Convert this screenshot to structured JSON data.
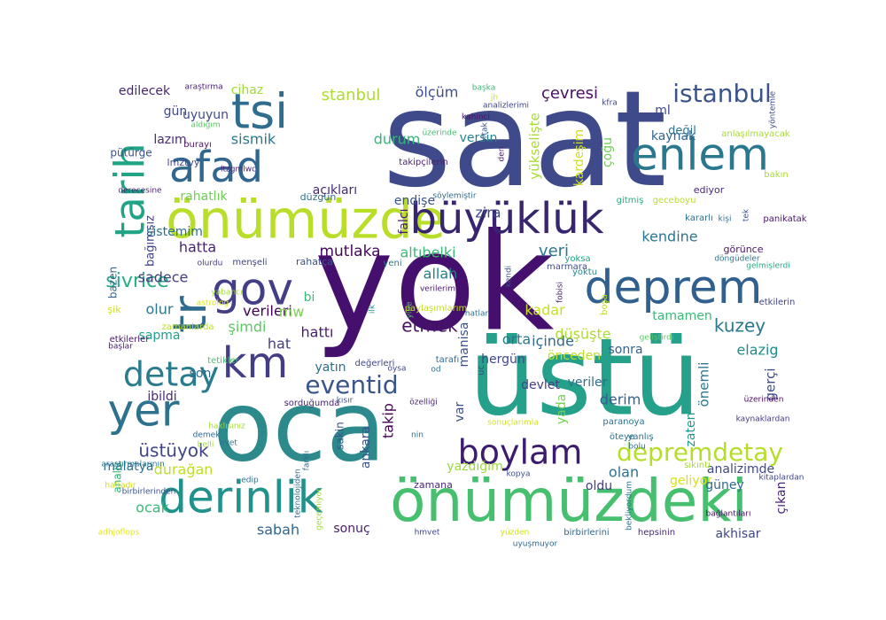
{
  "palette": [
    "#440154",
    "#482777",
    "#3e4989",
    "#31688e",
    "#26828e",
    "#1f9e89",
    "#35b779",
    "#6ece58",
    "#b5de2b",
    "#fde725"
  ],
  "words": [
    {
      "text": "saat",
      "color": "#3e4a89"
    },
    {
      "text": "yok",
      "color": "#45106d"
    },
    {
      "text": "oca",
      "color": "#2d8a8c"
    },
    {
      "text": "üstü",
      "color": "#25a08a"
    },
    {
      "text": "önümüzdeki",
      "color": "#46c06f"
    },
    {
      "text": "önümüzde",
      "color": "#b8de29"
    },
    {
      "text": "büyüklük",
      "color": "#38256f"
    },
    {
      "text": "deprem",
      "color": "#30608d"
    },
    {
      "text": "enlem",
      "color": "#2a788e"
    },
    {
      "text": "tsi",
      "color": "#2f6d8e"
    },
    {
      "text": "afad",
      "color": "#31668e"
    },
    {
      "text": "tr",
      "color": "#2f6b8e"
    },
    {
      "text": "tarih",
      "color": "#20a486"
    },
    {
      "text": "gov",
      "color": "#433e85"
    },
    {
      "text": "km",
      "color": "#433d84"
    },
    {
      "text": "yer",
      "color": "#2c728e"
    },
    {
      "text": "derinlik",
      "color": "#21918c"
    },
    {
      "text": "detay",
      "color": "#297b8e"
    },
    {
      "text": "boylam",
      "color": "#3b1c6e"
    },
    {
      "text": "depremdetay",
      "color": "#b5de2b"
    },
    {
      "text": "eventid",
      "color": "#3a548c"
    },
    {
      "text": "istanbul",
      "color": "#3a538b"
    },
    {
      "text": "stanbul",
      "color": "#addc30"
    },
    {
      "text": "ölçüm",
      "color": "#3d4e8a"
    },
    {
      "text": "çevresi",
      "color": "#471063"
    },
    {
      "text": "edilecek",
      "color": "#482576"
    },
    {
      "text": "araştırma",
      "color": "#482173"
    },
    {
      "text": "cihaz",
      "color": "#a2da37"
    },
    {
      "text": "gün",
      "color": "#3f4889"
    },
    {
      "text": "uyuyun",
      "color": "#3e4c8a"
    },
    {
      "text": "lazım",
      "color": "#482979"
    },
    {
      "text": "sismik",
      "color": "#2a788e"
    },
    {
      "text": "durum",
      "color": "#35b779"
    },
    {
      "text": "versin",
      "color": "#25838e"
    },
    {
      "text": "yükselişte",
      "color": "#a8db34"
    },
    {
      "text": "kardeşim",
      "color": "#d0e11c"
    },
    {
      "text": "çoğu",
      "color": "#6ece58"
    },
    {
      "text": "ml",
      "color": "#3f4788"
    },
    {
      "text": "kaynak",
      "color": "#31668e"
    },
    {
      "text": "değil",
      "color": "#2c738e"
    },
    {
      "text": "rahatlık",
      "color": "#6ece58"
    },
    {
      "text": "açıkları",
      "color": "#482878"
    },
    {
      "text": "endişe",
      "color": "#3b528b"
    },
    {
      "text": "zira",
      "color": "#3e4989"
    },
    {
      "text": "kendine",
      "color": "#2b758e"
    },
    {
      "text": "veri",
      "color": "#2a788e"
    },
    {
      "text": "hatta",
      "color": "#482576"
    },
    {
      "text": "mutlaka",
      "color": "#46085c"
    },
    {
      "text": "altıbelki",
      "color": "#3aba76"
    },
    {
      "text": "allah",
      "color": "#277f8e"
    },
    {
      "text": "sivrice",
      "color": "#26ad81"
    },
    {
      "text": "verileri",
      "color": "#440154"
    },
    {
      "text": "sadece",
      "color": "#424186"
    },
    {
      "text": "olur",
      "color": "#2a778e"
    },
    {
      "text": "bi",
      "color": "#38b977"
    },
    {
      "text": "mw",
      "color": "#7ad151"
    },
    {
      "text": "hattı",
      "color": "#481d6f"
    },
    {
      "text": "şimdi",
      "color": "#5ec962"
    },
    {
      "text": "hat",
      "color": "#423f85"
    },
    {
      "text": "etmek",
      "color": "#471365"
    },
    {
      "text": "manisa",
      "color": "#3b528b"
    },
    {
      "text": "orta",
      "color": "#2a788e"
    },
    {
      "text": "kadar",
      "color": "#c8e020"
    },
    {
      "text": "içinde",
      "color": "#306a8e"
    },
    {
      "text": "düşüşte",
      "color": "#addc30"
    },
    {
      "text": "kuzey",
      "color": "#2a788e"
    },
    {
      "text": "tamamen",
      "color": "#3aba76"
    },
    {
      "text": "sonra",
      "color": "#32648e"
    },
    {
      "text": "elazig",
      "color": "#228c8d"
    },
    {
      "text": "sapma",
      "color": "#1fa088"
    },
    {
      "text": "yatın",
      "color": "#2e6e8e"
    },
    {
      "text": "var",
      "color": "#3b528b"
    },
    {
      "text": "hergün",
      "color": "#3f4788"
    },
    {
      "text": "önceden",
      "color": "#bddf26"
    },
    {
      "text": "ibildi",
      "color": "#482979"
    },
    {
      "text": "son",
      "color": "#31688e"
    },
    {
      "text": "devlet",
      "color": "#433e85"
    },
    {
      "text": "veriler",
      "color": "#2e6e8e"
    },
    {
      "text": "önemli",
      "color": "#2a778e"
    },
    {
      "text": "derim",
      "color": "#35608d"
    },
    {
      "text": "gerçi",
      "color": "#3e4c8a"
    },
    {
      "text": "zaten",
      "color": "#1f9a8a"
    },
    {
      "text": "yada",
      "color": "#75d054"
    },
    {
      "text": "üstüyok",
      "color": "#404688"
    },
    {
      "text": "durağan",
      "color": "#bddf26"
    },
    {
      "text": "malatya",
      "color": "#2c728e"
    },
    {
      "text": "takip",
      "color": "#440154"
    },
    {
      "text": "ankara",
      "color": "#3a548c"
    },
    {
      "text": "sakin",
      "color": "#3b528b"
    },
    {
      "text": "yazdığım",
      "color": "#9bd93c"
    },
    {
      "text": "olan",
      "color": "#2e6f8e"
    },
    {
      "text": "analizimde",
      "color": "#3f4889"
    },
    {
      "text": "geliyor",
      "color": "#d8e219"
    },
    {
      "text": "güney",
      "color": "#31678e"
    },
    {
      "text": "oldu",
      "color": "#433d84"
    },
    {
      "text": "çıkan",
      "color": "#482576"
    },
    {
      "text": "ocak",
      "color": "#3aba76"
    },
    {
      "text": "sabah",
      "color": "#32658e"
    },
    {
      "text": "sonuç",
      "color": "#481b6d"
    },
    {
      "text": "akhisar",
      "color": "#3f4788"
    },
    {
      "text": "analiz",
      "color": "#35b779"
    },
    {
      "text": "bağımsız",
      "color": "#404387"
    },
    {
      "text": "sistemim",
      "color": "#2e6d8e"
    },
    {
      "text": "bazen",
      "color": "#34618d"
    },
    {
      "text": "pütürge",
      "color": "#3b528b"
    },
    {
      "text": "burayı",
      "color": "#481467"
    },
    {
      "text": "aldığım",
      "color": "#5ec962"
    },
    {
      "text": "lmztvy",
      "color": "#3f4788"
    },
    {
      "text": "ltzgmlwc",
      "color": "#482173"
    },
    {
      "text": "derecesine",
      "color": "#481f70"
    },
    {
      "text": "düzgün",
      "color": "#2c728e"
    },
    {
      "text": "şik",
      "color": "#d2e21b"
    },
    {
      "text": "yabancı",
      "color": "#a5db36"
    },
    {
      "text": "astrolog",
      "color": "#d8e219"
    },
    {
      "text": "olurdu",
      "color": "#433d84"
    },
    {
      "text": "menşeli",
      "color": "#404588"
    },
    {
      "text": "rahatça",
      "color": "#3b528b"
    },
    {
      "text": "yeni",
      "color": "#2a788e"
    },
    {
      "text": "zamanlarda",
      "color": "#b5de2b"
    },
    {
      "text": "etkilerler",
      "color": "#481769"
    },
    {
      "text": "başlar",
      "color": "#481668"
    },
    {
      "text": "tetikler",
      "color": "#46c06f"
    },
    {
      "text": "değerleri",
      "color": "#3e4989"
    },
    {
      "text": "tarafı",
      "color": "#31688e"
    },
    {
      "text": "od",
      "color": "#2c728e"
    },
    {
      "text": "uc",
      "color": "#404688"
    },
    {
      "text": "oysa",
      "color": "#3e4a89"
    },
    {
      "text": "ilk",
      "color": "#1f958b"
    },
    {
      "text": "yine",
      "color": "#4ac16d"
    },
    {
      "text": "hatlar",
      "color": "#2d708e"
    },
    {
      "text": "paylaşımlarım",
      "color": "#c2df23"
    },
    {
      "text": "verilerim",
      "color": "#481a6c"
    },
    {
      "text": "yoksa",
      "color": "#1fa287"
    },
    {
      "text": "yoktu",
      "color": "#23898e"
    },
    {
      "text": "marmara",
      "color": "#3d4d8a"
    },
    {
      "text": "fobisi",
      "color": "#482475"
    },
    {
      "text": "boşa",
      "color": "#bddf26"
    },
    {
      "text": "döngüdeler",
      "color": "#2a768e"
    },
    {
      "text": "gelmişlerdi",
      "color": "#27ad81"
    },
    {
      "text": "görünce",
      "color": "#481567"
    },
    {
      "text": "kararlı",
      "color": "#2e6e8e"
    },
    {
      "text": "kişi",
      "color": "#2d718e"
    },
    {
      "text": "tek",
      "color": "#3a548c"
    },
    {
      "text": "panikatak",
      "color": "#481668"
    },
    {
      "text": "başka",
      "color": "#3ab977"
    },
    {
      "text": "jh",
      "color": "#d0e11c"
    },
    {
      "text": "analizlerimi",
      "color": "#404588"
    },
    {
      "text": "kfra",
      "color": "#3f4788"
    },
    {
      "text": "kahinci",
      "color": "#471164"
    },
    {
      "text": "üzerinde",
      "color": "#43bf71"
    },
    {
      "text": "ortak",
      "color": "#3b528b"
    },
    {
      "text": "den",
      "color": "#481b6d"
    },
    {
      "text": "takipçilerin",
      "color": "#481f70"
    },
    {
      "text": "söylemiştir",
      "color": "#2f6c8e"
    },
    {
      "text": "gitmiş",
      "color": "#26ad81"
    },
    {
      "text": "geceboyu",
      "color": "#b5de2b"
    },
    {
      "text": "ediyor",
      "color": "#482979"
    },
    {
      "text": "bakın",
      "color": "#aadc32"
    },
    {
      "text": "anlaşılmayacak",
      "color": "#a8db34"
    },
    {
      "text": "yöntemle",
      "color": "#3f4788"
    },
    {
      "text": "kendi",
      "color": "#3b528b"
    },
    {
      "text": "etkilerin",
      "color": "#404688"
    },
    {
      "text": "geliştirdi",
      "color": "#5ec962"
    },
    {
      "text": "üzerinden",
      "color": "#46085c"
    },
    {
      "text": "kaynaklardan",
      "color": "#443983"
    },
    {
      "text": "özelliği",
      "color": "#482677"
    },
    {
      "text": "kısır",
      "color": "#3b528b"
    },
    {
      "text": "sorduğumda",
      "color": "#482475"
    },
    {
      "text": "haklısınız",
      "color": "#a2da37"
    },
    {
      "text": "demek",
      "color": "#31688e"
    },
    {
      "text": "belli",
      "color": "#a2da37"
    },
    {
      "text": "evet",
      "color": "#2b758e"
    },
    {
      "text": "farklı",
      "color": "#2f6c8e"
    },
    {
      "text": "nin",
      "color": "#2e6e8e"
    },
    {
      "text": "sonuçlarımla",
      "color": "#d2e21b"
    },
    {
      "text": "paranoya",
      "color": "#2c728e"
    },
    {
      "text": "öteye",
      "color": "#2c728e"
    },
    {
      "text": "yanlış",
      "color": "#2c728e"
    },
    {
      "text": "bolu",
      "color": "#2b748e"
    },
    {
      "text": "sıkıntı",
      "color": "#a5db36"
    },
    {
      "text": "haftadır",
      "color": "#d0e11c"
    },
    {
      "text": "birbirlerinden",
      "color": "#3d4e8a"
    },
    {
      "text": "edip",
      "color": "#2c728e"
    },
    {
      "text": "teknolojiden",
      "color": "#31688e"
    },
    {
      "text": "geçemiyor",
      "color": "#a0da39"
    },
    {
      "text": "zamana",
      "color": "#482677"
    },
    {
      "text": "kopya",
      "color": "#3c508b"
    },
    {
      "text": "adhjoflops",
      "color": "#e2e418"
    },
    {
      "text": "araştırmalarının",
      "color": "#2c728e"
    },
    {
      "text": "hmvet",
      "color": "#3f4788"
    },
    {
      "text": "yüzden",
      "color": "#d0e11c"
    },
    {
      "text": "uyuşmuyor",
      "color": "#31688e"
    },
    {
      "text": "birbirlerini",
      "color": "#30698e"
    },
    {
      "text": "hepsinin",
      "color": "#482878"
    },
    {
      "text": "bekliyordum",
      "color": "#2a768e"
    },
    {
      "text": "bağlantıları",
      "color": "#470e61"
    },
    {
      "text": "kitaplardan",
      "color": "#3f4788"
    },
    {
      "text": "falcı",
      "color": "#481b6d"
    },
    {
      "text": "buda",
      "color": "#2d718e"
    },
    {
      "text": "adası",
      "color": "#2e6e8e"
    }
  ]
}
